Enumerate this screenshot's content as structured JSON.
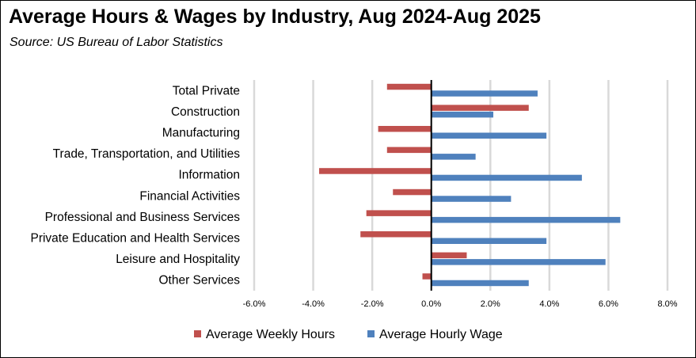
{
  "chart_data": {
    "type": "bar",
    "orientation": "horizontal",
    "title": "Average Hours & Wages by Industry, Aug 2024-Aug 2025",
    "subtitle": "Source:  US Bureau of Labor Statistics",
    "categories": [
      "Total Private",
      "Construction",
      "Manufacturing",
      "Trade, Transportation, and Utilities",
      "Information",
      "Financial Activities",
      "Professional and Business Services",
      "Private Education and Health Services",
      "Leisure and Hospitality",
      "Other Services"
    ],
    "series": [
      {
        "name": "Average Weekly Hours",
        "color": "#c0504d",
        "values": [
          -1.5,
          3.3,
          -1.8,
          -1.5,
          -3.8,
          -1.3,
          -2.2,
          -2.4,
          1.2,
          -0.3
        ]
      },
      {
        "name": "Average Hourly Wage",
        "color": "#4f81bd",
        "values": [
          3.6,
          2.1,
          3.9,
          1.5,
          5.1,
          2.7,
          6.4,
          3.9,
          5.9,
          3.3
        ]
      }
    ],
    "xlim": [
      -6,
      8
    ],
    "xticks": [
      "-6.0%",
      "-4.0%",
      "-2.0%",
      "0.0%",
      "2.0%",
      "4.0%",
      "6.0%",
      "8.0%"
    ],
    "xtick_values": [
      -6,
      -4,
      -2,
      0,
      2,
      4,
      6,
      8
    ],
    "grid": true,
    "legend_position": "bottom"
  }
}
